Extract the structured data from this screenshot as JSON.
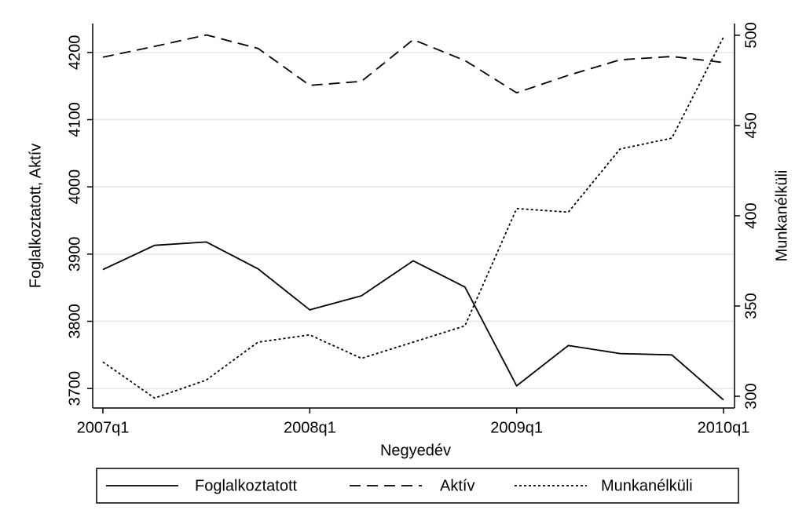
{
  "chart_data": {
    "type": "line",
    "x_label": "Negyedév",
    "y_label": "Foglalkoztatott, Aktív",
    "y2_label": "Munkanélküli",
    "categories": [
      "2007q1",
      null,
      null,
      null,
      "2008q1",
      null,
      null,
      null,
      "2009q1",
      null,
      null,
      null,
      "2010q1"
    ],
    "series": [
      {
        "name": "Foglalkoztatott",
        "color": "#000000",
        "dash": "solid",
        "values": [
          3877,
          3913,
          3918,
          3878,
          3817,
          3838,
          3890,
          3851,
          3704,
          3764,
          3752,
          3750,
          3683
        ]
      },
      {
        "name": "Aktív",
        "color": "#000000",
        "dash": "dashed",
        "values": [
          4193,
          4209,
          4226,
          4206,
          4151,
          4157,
          4219,
          4188,
          4140,
          4166,
          4189,
          4194,
          4185
        ]
      },
      {
        "name": "Munkanélküli",
        "color": "#000000",
        "dash": "dotted",
        "axis": "y2",
        "values": [
          319,
          299,
          309,
          330,
          334,
          321,
          330,
          339,
          404,
          402,
          437,
          443,
          499
        ]
      }
    ],
    "ylim": [
      3671,
      4243
    ],
    "yticks": [
      3700,
      3800,
      3900,
      4000,
      4100,
      4200
    ],
    "y2lim": [
      293.5,
      506.5
    ],
    "y2ticks": [
      300,
      350,
      400,
      450,
      500
    ],
    "grid": true,
    "legend": "bottom"
  }
}
